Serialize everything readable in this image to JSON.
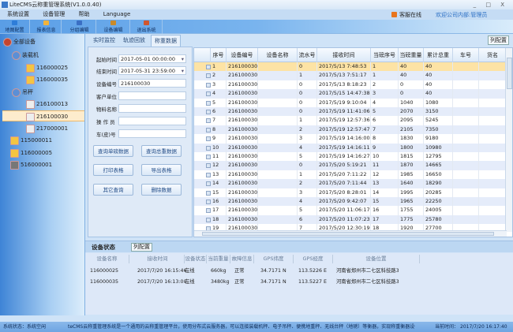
{
  "window": {
    "title": "LiteCMS云称重管理系统(V1.0.0.40)",
    "controls": [
      "_",
      "□",
      "X"
    ]
  },
  "menu": [
    "系统设置",
    "设备管理",
    "帮助",
    "Language"
  ],
  "header": {
    "online_label": "客服在线",
    "welcome": "欢迎公司内部:管理员"
  },
  "toolbar": [
    "地图配置",
    "报表信息",
    "分组编辑",
    "设备编辑",
    "退出系统"
  ],
  "tree": {
    "root": "全部设备",
    "groups": [
      {
        "label": "装载机",
        "items": [
          "116000025",
          "116000035"
        ]
      },
      {
        "label": "吊秤",
        "items": [
          "216100013",
          "216100030",
          "217000001"
        ]
      }
    ],
    "loose": [
      "115000011",
      "116000005",
      "516000001"
    ],
    "selected": "216100030"
  },
  "tabs": [
    "实时监控",
    "轨迹回放",
    "称重数据"
  ],
  "active_tab": "称重数据",
  "column_config": "列配置",
  "form": {
    "start_label": "起始时间",
    "start_value": "2017-05-01 00:00:00",
    "end_label": "结束时间",
    "end_value": "2017-05-31 23:59:00",
    "device_label": "设备编号",
    "device_value": "216100030",
    "customer_label": "客户单位",
    "customer_value": "",
    "material_label": "物料名称",
    "material_value": "",
    "operator_label": "操 作 员",
    "operator_value": "",
    "vehicle_label": "车(皮)号",
    "vehicle_value": "",
    "buttons": [
      "查询单磅数据",
      "查询总重数据",
      "打印表格",
      "导出表格",
      "其它查询",
      "删除数据"
    ]
  },
  "grid": {
    "columns": [
      "序号",
      "设备编号",
      "设备名称",
      "流水号",
      "接收时间",
      "当磅序号",
      "当磅重量",
      "累计总重",
      "车号",
      "货名"
    ],
    "rows": [
      [
        "1",
        "216100030",
        "",
        "0",
        "2017/5/13 7:48:53",
        "1",
        "40",
        "40",
        "",
        ""
      ],
      [
        "2",
        "216100030",
        "",
        "1",
        "2017/5/13 7:51:17",
        "1",
        "40",
        "40",
        "",
        ""
      ],
      [
        "3",
        "216100030",
        "",
        "0",
        "2017/5/13 8:18:23",
        "2",
        "0",
        "40",
        "",
        ""
      ],
      [
        "4",
        "216100030",
        "",
        "0",
        "2017/5/15 14:47:38",
        "3",
        "0",
        "40",
        "",
        ""
      ],
      [
        "5",
        "216100030",
        "",
        "0",
        "2017/5/19 9:10:04",
        "4",
        "1040",
        "1080",
        "",
        ""
      ],
      [
        "6",
        "216100030",
        "",
        "0",
        "2017/5/19 11:41:06",
        "5",
        "2070",
        "3150",
        "",
        ""
      ],
      [
        "7",
        "216100030",
        "",
        "1",
        "2017/5/19 12:57:36",
        "6",
        "2095",
        "5245",
        "",
        ""
      ],
      [
        "8",
        "216100030",
        "",
        "2",
        "2017/5/19 12:57:47",
        "7",
        "2105",
        "7350",
        "",
        ""
      ],
      [
        "9",
        "216100030",
        "",
        "3",
        "2017/5/19 14:16:00",
        "8",
        "1830",
        "9180",
        "",
        ""
      ],
      [
        "10",
        "216100030",
        "",
        "4",
        "2017/5/19 14:16:11",
        "9",
        "1800",
        "10980",
        "",
        ""
      ],
      [
        "11",
        "216100030",
        "",
        "5",
        "2017/5/19 14:16:27",
        "10",
        "1815",
        "12795",
        "",
        ""
      ],
      [
        "12",
        "216100030",
        "",
        "0",
        "2017/5/20 5:19:21",
        "11",
        "1870",
        "14665",
        "",
        ""
      ],
      [
        "13",
        "216100030",
        "",
        "1",
        "2017/5/20 7:11:22",
        "12",
        "1985",
        "16650",
        "",
        ""
      ],
      [
        "14",
        "216100030",
        "",
        "2",
        "2017/5/20 7:11:44",
        "13",
        "1640",
        "18290",
        "",
        ""
      ],
      [
        "15",
        "216100030",
        "",
        "3",
        "2017/5/20 8:28:01",
        "14",
        "1995",
        "20285",
        "",
        ""
      ],
      [
        "16",
        "216100030",
        "",
        "4",
        "2017/5/20 9:42:07",
        "15",
        "1965",
        "22250",
        "",
        ""
      ],
      [
        "17",
        "216100030",
        "",
        "5",
        "2017/5/20 11:06:17",
        "16",
        "1755",
        "24005",
        "",
        ""
      ],
      [
        "18",
        "216100030",
        "",
        "6",
        "2017/5/20 11:07:23",
        "17",
        "1775",
        "25780",
        "",
        ""
      ],
      [
        "19",
        "216100030",
        "",
        "7",
        "2017/5/20 12:30:19",
        "18",
        "1920",
        "27700",
        "",
        ""
      ]
    ]
  },
  "device_status": {
    "title": "设备状态",
    "config": "列配置",
    "columns": [
      "设备名称",
      "接收时间",
      "设备状态",
      "当前重量",
      "故障信息",
      "GPS纬度",
      "GPS经度",
      "设备位置"
    ],
    "rows": [
      [
        "116000025",
        "2017/7/20 16:15:46",
        "在线",
        "660kg",
        "正常",
        "34.7171 N",
        "113.5226 E",
        "河南省郑州市二七区科技路3"
      ],
      [
        "116000035",
        "2017/7/20 16:13:00",
        "在线",
        "3480kg",
        "正常",
        "34.7171 N",
        "113.5227 E",
        "河南省郑州市二七区科技路3"
      ]
    ]
  },
  "statusbar": {
    "status_label": "系统状态：",
    "status_value": "系统空闲",
    "marquee": "teCMS云称重管理系统是一个通用的云称重管理平台，使用分布式云服务器，可以连接装载机秤、电子吊秤、便携地重秤、无线台秤（地磅）等衡器，实现称重衡器设备&",
    "time_label": "当前时间：",
    "time_value": "2017/7/20 16:17:40"
  },
  "colors": {
    "accent": "#3e84d6",
    "selected_row": "#fde3a5",
    "alt_row": "#e5ecfa"
  }
}
